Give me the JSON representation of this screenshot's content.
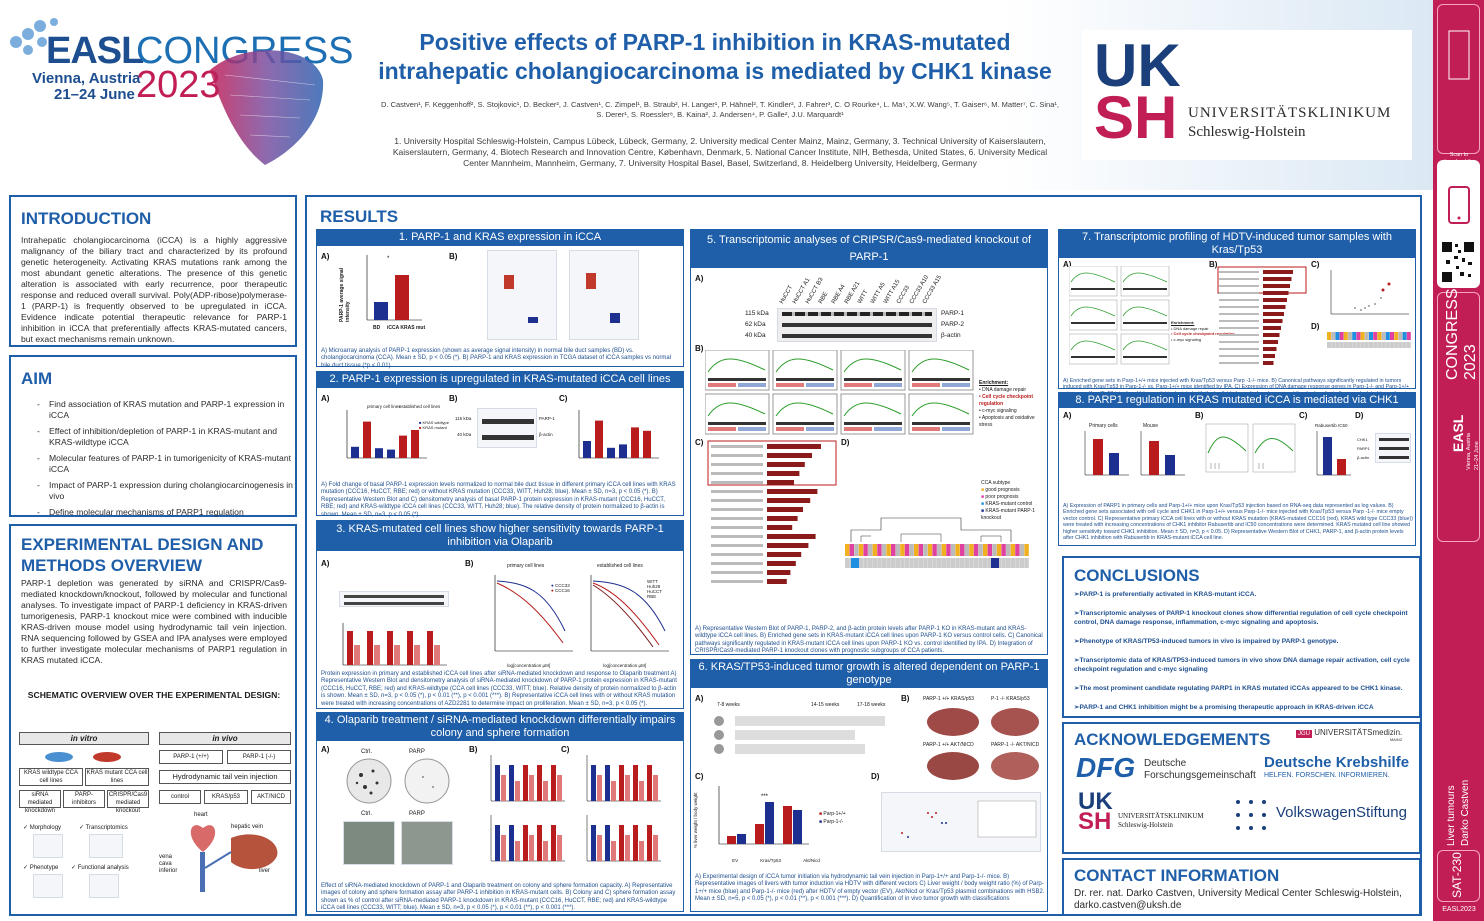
{
  "header": {
    "easl": "EASL",
    "congress": "CONGRESS",
    "city": "Vienna, Austria",
    "dates": "21–24 June",
    "year": "2023",
    "title_line1": "Positive effects of PARP-1 inhibition in KRAS-mutated",
    "title_line2": "intrahepatic cholangiocarcinoma is mediated by CHK1 kinase",
    "authors": "D. Castven¹, F. Keggenhoff², S. Stojkovic¹, D. Becker², J. Castven¹, C. Zimpel¹, B. Straub², H. Langer¹, P. Hähnel², T. Kindler², J. Fahrer³, C. O Rourke⁴, L. Ma⁵, X.W. Wang⁵, T. Gaiser⁶, M. Matter⁷, C. Sina¹, S. Derer¹, S. Roessler⁸, B. Kaina², J. Andersen⁴, P. Galle², J.U. Marquardt¹",
    "affiliations": "1. University Hospital Schleswig-Holstein, Campus Lübeck, Lübeck, Germany, 2. University medical Center Mainz, Mainz, Germany, 3. Technical University of Kaiserslautern, Kaiserslautern, Germany, 4. Biotech Research and Innovation Centre, København, Denmark, 5. National Cancer Institute, NIH, Bethesda, United States, 6. University Medical Center Mannheim, Mannheim, Germany, 7. University Hospital Basel, Basel, Switzerland, 8. Heidelberg University, Heidelberg, Germany",
    "uksh_u": "UK",
    "uksh_s": "SH",
    "uksh_name1": "UNIVERSITÄTSKLINIKUM",
    "uksh_name2": "Schleswig-Holstein"
  },
  "intro": {
    "heading": "INTRODUCTION",
    "text": "Intrahepatic cholangiocarcinoma (iCCA) is a highly aggressive malignancy of the biliary tract and characterized by its profound genetic heterogeneity. Activating KRAS mutations rank among the most abundant genetic alterations. The presence of this genetic alteration is associated with early recurrence, poor therapeutic response and reduced overall survival. Poly(ADP-ribose)polymerase-1 (PARP-1) is frequently observed to be upregulated in iCCA. Evidence indicate potential therapeutic relevance for PARP-1 inhibition in iCCA that preferentially affects KRAS-mutated cancers, but exact mechanisms remain unknown."
  },
  "aim": {
    "heading": "AIM",
    "items": [
      "Find association of KRAS mutation and PARP-1 expression in iCCA",
      "Effect of inhibition/depletion of PARP-1 in KRAS-mutant and KRAS-wildtype iCCA",
      "Molecular features of PARP-1 in tumorigenicity of KRAS-mutant iCCA",
      "Impact of PARP-1 expression during cholangiocarcinogenesis in vivo",
      "Define molecular mechanisms of PARP1 regulation"
    ]
  },
  "methods": {
    "heading_l1": "EXPERIMENTAL DESIGN AND",
    "heading_l2": "METHODS OVERVIEW",
    "text": "PARP-1 depletion was generated by siRNA and CRISPR/Cas9-mediated knockdown/knockout, followed by molecular and functional analyses. To investigate impact of PARP-1 deficiency in KRAS-driven tumorigenesis, PARP-1 knockout mice were combined with inducible KRAS-driven mouse model using hydrodynamic tail vein injection. RNA sequencing followed by GSEA and IPA analyses were employed to further investigate molecular mechanisms of PARP1 regulation in KRAS mutated iCCA.",
    "schematic_title": "SCHEMATIC OVERVIEW OVER THE EXPERIMENTAL DESIGN:",
    "in_vitro": "in vitro",
    "in_vivo": "in vivo",
    "vitro_a": "KRAS wildtype CCA cell lines",
    "vitro_b": "KRAS mutant CCA cell lines",
    "vitro_c": "siRNA mediated knockdown",
    "vitro_d": "PARP-inhibitors",
    "vitro_e": "CRISPR/Cas9 mediated knockout",
    "vivo_a": "PARP-1 (+/+)",
    "vivo_b": "PARP-1 (-/-)",
    "vivo_c": "Hydrodynamic tail vein injection",
    "vivo_d": "control",
    "vivo_e": "KRAS/p53",
    "vivo_f": "AKT/NICD",
    "check1": "✓ Morphology",
    "check2": "✓ Transcriptomics",
    "check3": "✓ Phenotype",
    "check4": "✓ Functional analysis",
    "heart": "heart",
    "hepatic_vein": "hepatic vein",
    "vena": "vena cava inferior",
    "liver": "liver"
  },
  "results": {
    "heading": "RESULTS",
    "s1": {
      "title": "1. PARP-1 and KRAS expression in iCCA",
      "caption": "A) Microarray analysis of PARP-1 expression (shown as average signal intensity) in normal bile duct samples (BD) vs. cholangiocarcinoma (CCA). Mean ± SD, p < 0.05 (*). B) PARP-1 and KRAS expression in TCGA dataset of iCCA samples vs normal bile duct tissue (*p < 0.01).",
      "ylabel": "PARP-1 average signal intensity",
      "cat1": "BD",
      "cat2": "iCCA KRAS mut"
    },
    "s2": {
      "title": "2. PARP-1 expression is upregulated in KRAS-mutated iCCA cell lines",
      "caption": "A) Fold change of basal PARP-1 expression levels normalized to normal bile duct tissue in different primary iCCA cell lines with KRAS mutation (CCC16, HuCCT, RBE; red) or without KRAS mutation (CCC33, WITT, Huh28; blue). Mean ± SD, n=3, p < 0.05 (*). B) Representative Western Blot and C) densitometry analysis of basal PARP-1 protein expression in KRAS-mutant (CCC16, HuCCT, RBE; red) and KRAS-wildtype iCCA cell lines (CCC33, WITT, Huh28; blue). The relative density of protein normalized to β-actin is shown. Mean ± SD, n=3, p < 0.05 (*).",
      "legend_wt": "KRAS wildtype",
      "legend_mut": "KRAS mutant",
      "wb1": "PARP-1",
      "wb2": "β-actin",
      "kda1": "115 kDa",
      "kda2": "40 kDa",
      "primary": "primary cell lines",
      "established": "established cell lines"
    },
    "s3": {
      "title": "3. KRAS-mutated cell lines show higher sensitivity towards PARP-1 inhibition via Olaparib",
      "caption": "Protein expression in primary and established iCCA cell lines after siRNA-mediated knockdown and response to Olaparib treatment A) Representative Western Blot and densitometry analysis of siRNA-mediated knockdown of PARP-1 protein expression in KRAS-mutant (CCC16, HuCCT, RBE; red) and KRAS-wildtype (CCA cell lines (CCC33, WITT; blue). Relative density of protein normalized to β-actin is shown. Mean ± SD, n=3, p < 0.05 (*), p < 0.01 (**), p < 0.001 (***). B) Representative iCCA cell lines with or without KRAS mutation were treated with increasing concentrations of AZD2281 to determine impact on proliferation. Mean ± SD, n=3, p < 0.05 (*).",
      "primary": "primary cell lines",
      "established": "established cell lines",
      "xlabel": "log[concentration µM]",
      "ylabel": "cell viability (% of control)",
      "leg_ccc33": "CCC33",
      "leg_ccc16": "CCC16",
      "leg_witt": "WITT",
      "leg_huh28": "Huh28",
      "leg_hucct": "HuCCT",
      "leg_rbe": "RBE"
    },
    "s4": {
      "title": "4. Olaparib treatment / siRNA-mediated knockdown differentially impairs colony and sphere formation",
      "caption": "Effect of siRNA-mediated knockdown of PARP-1 and Olaparib treatment on colony and sphere formation capacity. A) Representative images of colony and sphere formation assay after PARP-1 inhibition in KRAS-mutant cells. B) Colony and C) sphere formation assay shown as % of control after siRNA-mediated PARP-1 knockdown in KRAS-mutant (CCC16, HuCCT, RBE; red) and KRAS-wildtype iCCA cell lines (CCC33, WITT; blue). Mean ± SD, n=3, p < 0.05 (*), p < 0.01 (**), p < 0.001 (***).",
      "ctrl": "Ctrl.",
      "parp": "PARP"
    },
    "s5": {
      "title": "5. Transcriptomic analyses of CRIPSR/Cas9-mediated knockout of PARP-1",
      "caption": "A) Representative Western Blot of PARP-1, PARP-2, and β-actin protein levels after PARP-1 KO in KRAS-mutant and KRAS-wildtype iCCA cell lines. B) Enriched gene sets in KRAS-mutant iCCA cell lines upon PARP-1 KO versus control cells. C) Canonical pathways significantly regulated in KRAS-mutant iCCA cell lines upon PARP-1 KO vs. control identified by IPA. D) Integration of CRISPR/Cas9-mediated PARP-1 knockout clones with prognostic subgroups of CCA patients.",
      "kda1": "115 kDa",
      "kda2": "62 kDa",
      "kda3": "40 kDa",
      "band1": "PARP-1",
      "band2": "PARP-2",
      "band3": "β-actin",
      "lanes": [
        "HuCCT",
        "HuCCT A1",
        "HuCCT B3",
        "RBE",
        "RBE A4",
        "RBE A21",
        "WITT",
        "WITT A5",
        "WITT A15",
        "CCC33",
        "CCC33 A10",
        "CCC33 A15"
      ],
      "enrich_title": "Enrichment:",
      "enrich_items": [
        "• DNA damage repair",
        "• Cell cycle checkpoint regulation",
        "• c-myc signaling",
        "• Apoptosis and oxidative stress"
      ],
      "legend_title": "CCA subtype",
      "legend_items": [
        "good prognosis",
        "poor prognosis",
        "KRAS-mutant control",
        "KRAS-mutant PARP-1 knockout"
      ]
    },
    "s6": {
      "title": "6. KRAS/TP53-induced tumor growth is altered dependent on PARP-1 genotype",
      "caption": "A) Experimental design of iCCA tumor initiation via hydrodynamic tail vein injection in Parp-1+/+ and Parp-1-/- mice. B) Representative images of livers with tumor induction via HDTV with different vectors C) Liver weight / body weight ratio (%) of Parp-1+/+ mice (blue) and Parp-1-/- mice (red) after HDTV of empty vector (EV), Akt/Nicd or Kras/Tp53 plasmid combinations with HSB2. Mean ± SD, n=5, p < 0.05 (*), p < 0.01 (**), p < 0.001 (***). D) Quantification of in vivo tumor growth with classifications",
      "wk1": "7-8 weeks",
      "wk2": "14-15 weeks",
      "wk3": "17-18 weeks",
      "ylabel": "% liver weight / body weight",
      "leg_pp": "Parp-1+/+",
      "leg_mm": "Parp-1-/-",
      "cats": [
        "EV",
        "Kras/Tp53",
        "Akt/Nicd"
      ],
      "img1": "PARP-1 +/+ KRAS/p53",
      "img2": "P-1 -/- KRAS/p53",
      "img3": "PARP-1 +/+ AKT/NICD",
      "img4": "PARP-1 -/- AKT/NICD",
      "stars": "***"
    },
    "s7": {
      "title": "7. Transcriptomic profiling of HDTV-induced tumor samples with Kras/Tp53",
      "caption": "A) Enriched gene sets in Parp-1+/+ mice injected with Kras/Tp53 versus Parp -1-/- mice. B) Canonical pathways significantly regulated in tumors induced with Kras/Tp53 in Parp-1-/- vs. Parp-1+/+ mice identified by IPA. C) Expression of DNA damage response genes in Parp-1-/- and Parp-1+/+ mice upon Kras/Tp53 injection. Volcano plot is depicted with the log(fold change) of each gene and the -log(p-adjusted) was calculated by performing Wald test. Selected genes associated with HR, c-NHEJ, and alt-NHEJ are colored and gene names are displayed. D) Integration of in vivo transcriptomic data with prognostic subgroups of CCA patients.",
      "enrich_title": "Enrichment:",
      "enrich_items": [
        "• DNA damage repair",
        "• Cell cycle checkpoint regulation",
        "• c-myc signaling"
      ]
    },
    "s8": {
      "title": "8. PARP1 regulation in KRAS mutated iCCA is mediated via CHK1",
      "caption": "A) Expression of PARP1 in primary cells and Parp-1+/+ mice upon Kras/Tp53 injection based on RNA-seq data represented as log values. B) Enriched gene sets associated with cell cycle and CHK1 in Parp-1+/+ versus Parp-1-/- mice injected with Kras/Tp53 versus Parp -1-/- mice empty vector control. C) Representative primary iCCA cell lines with or without KRAS mutation (KRAS-mutated CCC16 (red), KRAS wild type CCC33 (blue)) were treated with increasing concentrations of CHK1 inhibitor Rabusertib and IC50 concentrations were determined. KRAS mutated cell line showed higher sensitivity toward CHK1 inhibition. Mean ± SD, n=3, p < 0.05. D) Representative Western Blot of CHK1, PARP-1, and β-actin protein levels after CHK1 inhibition with Rabusertib in KRAS-mutant iCCA cell line.",
      "primary": "Primary cells",
      "mouse": "Mouse",
      "rabus": "Rabusertib IC50",
      "chk1": "CHK1",
      "parp1": "PARP1",
      "bact": "β-actin"
    }
  },
  "conclusions": {
    "heading": "CONCLUSIONS",
    "items": [
      "➢PARP-1 is preferentially activated in KRAS-mutant iCCA.",
      "➢Transcriptomic analyses of PARP-1 knockout clones show differential regulation of cell cycle checkpoint control, DNA damage response, inflammation, c-myc signaling and apoptosis.",
      "➢Phenotype of KRAS/TP53-induced tumors in vivo is impaired by PARP-1 genotype.",
      "➢Transcriptomic data of KRAS/TP53-induced tumors in vivo show DNA damage repair activation, cell cycle checkpoint regulation and c-myc signaling",
      "➢The most prominent candidate regulating PARP1 in KRAS mutated iCCAs appeared to be CHK1 kinase.",
      "➢PARP-1 and CHK1 inhibition might be a promising therapeutic approach in KRAS-driven iCCA"
    ]
  },
  "ack": {
    "heading": "ACKNOWLEDGEMENTS",
    "dfg": "DFG",
    "dfg_text1": "Deutsche",
    "dfg_text2": "Forschungsgemeinschaft",
    "um": "UNIVERSITÄTSmedizin.",
    "um_sub": "MAINZ",
    "krebs1": "Deutsche Krebshilfe",
    "krebs2": "HELFEN. FORSCHEN. INFORMIEREN.",
    "uksh_u": "UK",
    "uksh_s": "SH",
    "uksh1": "UNIVERSITÄTSKLINIKUM",
    "uksh2": "Schleswig-Holstein",
    "vw": "VolkswagenStiftung"
  },
  "contact": {
    "heading": "CONTACT INFORMATION",
    "line1": "Dr. rer. nat. Darko Castven, University Medical Center Schleswig-Holstein,",
    "line2": "darko.castven@uksh.de"
  },
  "sidebar": {
    "scan": "Scan to download the poster",
    "easl": "EASL",
    "congress": "CONGRESS",
    "year": "2023",
    "city": "Vienna, Austria",
    "dates": "21–24 June",
    "topic": "Liver tumours",
    "author": "Darko Castven",
    "code": "SAT-230",
    "tag": "EASL2023"
  },
  "colors": {
    "blue": "#1f5ea8",
    "red": "#c21e56",
    "bar_red": "#b81c1c",
    "bar_blue": "#1d2f8f"
  }
}
